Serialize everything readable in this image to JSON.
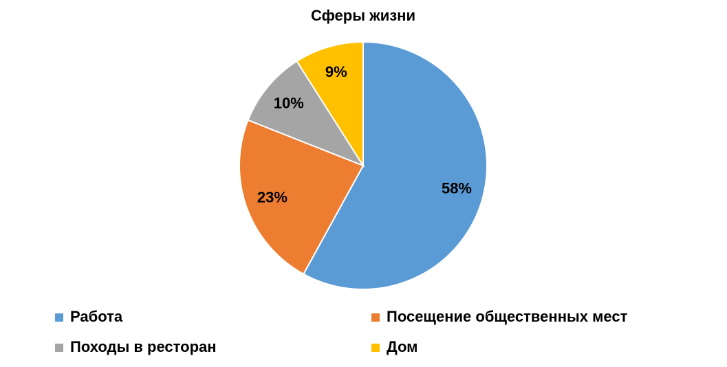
{
  "chart_data": {
    "type": "pie",
    "title": "Сферы жизни",
    "categories": [
      "Работа",
      "Посещение общественных мест",
      "Походы в ресторан",
      "Дом"
    ],
    "values": [
      58,
      23,
      10,
      9
    ],
    "value_labels": [
      "58%",
      "23%",
      "10%",
      "9%"
    ],
    "colors": [
      "#5b9bd5",
      "#ed7d31",
      "#a5a5a5",
      "#ffc000"
    ]
  }
}
